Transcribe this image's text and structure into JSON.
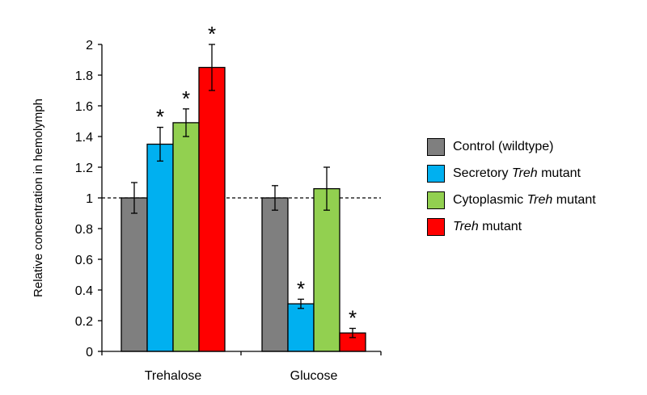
{
  "chart_data": {
    "type": "bar",
    "ylabel": "Relative concentration in hemolymph",
    "xlabel": "",
    "ylim": [
      0,
      2
    ],
    "yticks": [
      "0",
      "0.2",
      "0.4",
      "0.6",
      "0.8",
      "1",
      "1.2",
      "1.4",
      "1.6",
      "1.8",
      "2"
    ],
    "categories": [
      "Trehalose",
      "Glucose"
    ],
    "reference_line": 1,
    "series": [
      {
        "name": "Control (wildtype)",
        "name_parts": [
          {
            "t": "Control (wildtype)",
            "i": false
          }
        ],
        "color": "#7f7f7f",
        "values": [
          1.0,
          1.0
        ],
        "errors": [
          0.1,
          0.08
        ],
        "significant": [
          false,
          false
        ]
      },
      {
        "name": "Secretory Treh mutant",
        "name_parts": [
          {
            "t": "Secretory ",
            "i": false
          },
          {
            "t": "Treh",
            "i": true
          },
          {
            "t": " mutant",
            "i": false
          }
        ],
        "color": "#00b0f0",
        "values": [
          1.35,
          0.31
        ],
        "errors": [
          0.11,
          0.03
        ],
        "significant": [
          true,
          true
        ]
      },
      {
        "name": "Cytoplasmic Treh mutant",
        "name_parts": [
          {
            "t": "Cytoplasmic ",
            "i": false
          },
          {
            "t": "Treh",
            "i": true
          },
          {
            "t": " mutant",
            "i": false
          }
        ],
        "color": "#92d050",
        "values": [
          1.49,
          1.06
        ],
        "errors": [
          0.09,
          0.14
        ],
        "significant": [
          true,
          false
        ]
      },
      {
        "name": "Treh mutant",
        "name_parts": [
          {
            "t": "Treh",
            "i": true
          },
          {
            "t": " mutant",
            "i": false
          }
        ],
        "color": "#ff0000",
        "values": [
          1.85,
          0.12
        ],
        "errors": [
          0.15,
          0.03
        ],
        "significant": [
          true,
          true
        ]
      }
    ],
    "significance_marker": "*",
    "legend_position": "right"
  }
}
